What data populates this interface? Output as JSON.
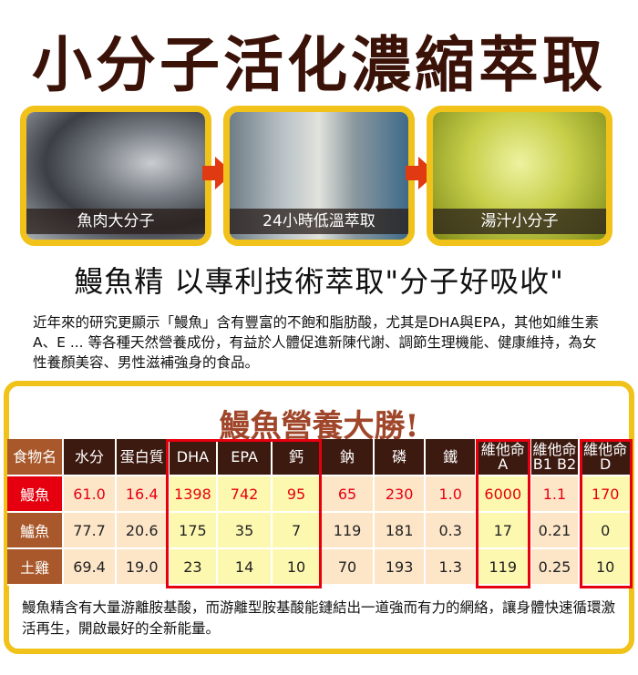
{
  "title": "小分子活化濃縮萃取",
  "steps": [
    {
      "caption": "魚肉大分子"
    },
    {
      "caption": "24小時低溫萃取"
    },
    {
      "caption": "湯汁小分子"
    }
  ],
  "subtitle": "鰻魚精 以專利技術萃取\"分子好吸收\"",
  "paragraph": "近年來的研究更顯示「鰻魚」含有豐富的不飽和脂肪酸，尤其是DHA與EPA，其他如維生素A、E ... 等各種天然營養成份，有益於人體促進新陳代謝、調節生理機能、健康維持，為女性養顏美容、男性滋補強身的食品。",
  "section": {
    "heading": "鰻魚營養大勝!",
    "headers": [
      "食物名",
      "水分",
      "蛋白質",
      "DHA",
      "EPA",
      "鈣",
      "鈉",
      "磷",
      "鐵",
      "維他命\nA",
      "維他命\nB1 B2",
      "維他命\nD"
    ],
    "rows": [
      [
        "鰻魚",
        "61.0",
        "16.4",
        "1398",
        "742",
        "95",
        "65",
        "230",
        "1.0",
        "6000",
        "1.1",
        "170"
      ],
      [
        "鱸魚",
        "77.7",
        "20.6",
        "175",
        "35",
        "7",
        "119",
        "181",
        "0.3",
        "17",
        "0.21",
        "0"
      ],
      [
        "土雞",
        "69.4",
        "19.0",
        "23",
        "14",
        "10",
        "70",
        "193",
        "1.3",
        "119",
        "0.25",
        "10"
      ]
    ],
    "footer": "鰻魚精含有大量游離胺基酸，而游離型胺基酸能鏈結出一道強而有力的網絡，讓身體快速循環激活再生，開啟最好的全新能量。"
  },
  "colors": {
    "accent": "#f1c21a",
    "highlight": "#e6000f",
    "header": "#3d1a10"
  }
}
